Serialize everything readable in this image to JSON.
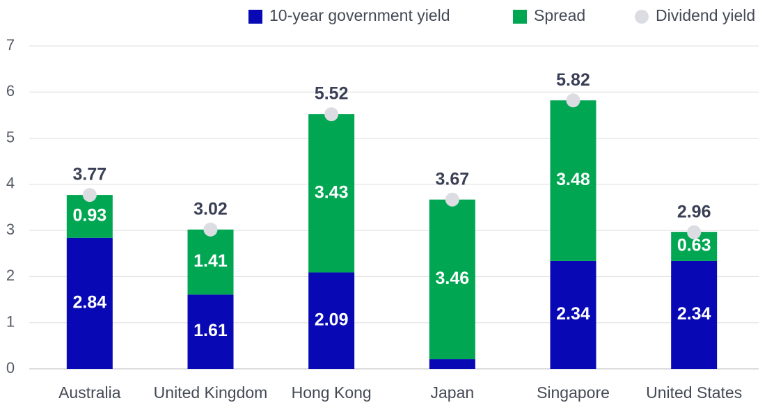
{
  "chart_data": {
    "type": "bar",
    "stacked": true,
    "categories": [
      "Australia",
      "United Kingdom",
      "Hong Kong",
      "Japan",
      "Singapore",
      "United States"
    ],
    "series": [
      {
        "name": "10-year government yield",
        "color": "#0808b4",
        "values": [
          2.84,
          1.61,
          2.09,
          0.21,
          2.34,
          2.34
        ]
      },
      {
        "name": "Spread",
        "color": "#00a651",
        "values": [
          0.93,
          1.41,
          3.43,
          3.46,
          3.48,
          0.63
        ]
      },
      {
        "name": "Dividend yield",
        "color": "#dcdde2",
        "type": "scatter",
        "values": [
          3.77,
          3.02,
          5.52,
          3.67,
          5.82,
          2.96
        ]
      }
    ],
    "ylim": [
      0,
      7
    ],
    "yticks": [
      0,
      1,
      2,
      3,
      4,
      5,
      6,
      7
    ],
    "grid": true,
    "legend": "top-right"
  }
}
